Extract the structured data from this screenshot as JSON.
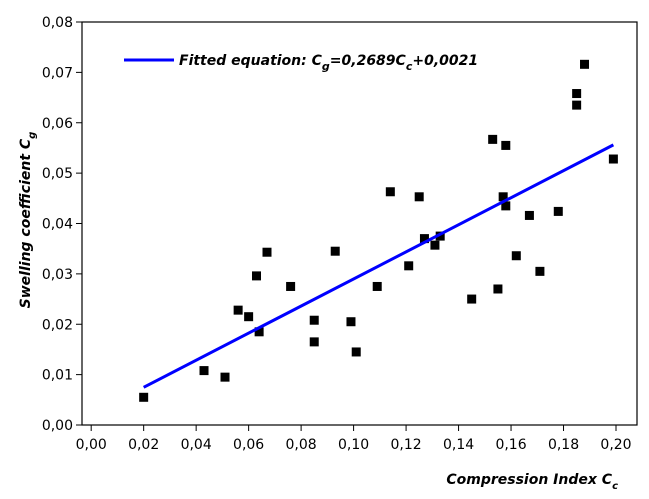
{
  "chart_data": {
    "type": "scatter",
    "xlabel": [
      "Compression Index C",
      "c"
    ],
    "ylabel": [
      "Swelling coefficient C",
      "g"
    ],
    "xlim": [
      -0.0035,
      0.208
    ],
    "ylim": [
      0,
      0.08
    ],
    "xticks": [
      {
        "value": 0,
        "label": "0,00"
      },
      {
        "value": 0.02,
        "label": "0,02"
      },
      {
        "value": 0.04,
        "label": "0,04"
      },
      {
        "value": 0.06,
        "label": "0,06"
      },
      {
        "value": 0.08,
        "label": "0,08"
      },
      {
        "value": 0.1,
        "label": "0,10"
      },
      {
        "value": 0.12,
        "label": "0,12"
      },
      {
        "value": 0.14,
        "label": "0,14"
      },
      {
        "value": 0.16,
        "label": "0,16"
      },
      {
        "value": 0.18,
        "label": "0,18"
      },
      {
        "value": 0.2,
        "label": "0,20"
      }
    ],
    "yticks": [
      {
        "value": 0,
        "label": "0,00"
      },
      {
        "value": 0.01,
        "label": "0,01"
      },
      {
        "value": 0.02,
        "label": "0,02"
      },
      {
        "value": 0.03,
        "label": "0,03"
      },
      {
        "value": 0.04,
        "label": "0,04"
      },
      {
        "value": 0.05,
        "label": "0,05"
      },
      {
        "value": 0.06,
        "label": "0,06"
      },
      {
        "value": 0.07,
        "label": "0,07"
      },
      {
        "value": 0.08,
        "label": "0,08"
      }
    ],
    "legend": "upper left",
    "series": [
      {
        "type": "scatter",
        "color": "#000000",
        "x": [
          0.02,
          0.043,
          0.051,
          0.056,
          0.06,
          0.063,
          0.064,
          0.067,
          0.076,
          0.085,
          0.085,
          0.093,
          0.099,
          0.101,
          0.109,
          0.114,
          0.121,
          0.125,
          0.127,
          0.131,
          0.133,
          0.145,
          0.153,
          0.155,
          0.157,
          0.158,
          0.158,
          0.162,
          0.167,
          0.171,
          0.178,
          0.185,
          0.185,
          0.188,
          0.199
        ],
        "values": [
          0.0055,
          0.0108,
          0.0095,
          0.0228,
          0.0215,
          0.0296,
          0.0185,
          0.0343,
          0.0275,
          0.0208,
          0.0165,
          0.0345,
          0.0205,
          0.0145,
          0.0275,
          0.0463,
          0.0316,
          0.0453,
          0.037,
          0.0357,
          0.0375,
          0.025,
          0.0567,
          0.027,
          0.0453,
          0.0555,
          0.0435,
          0.0336,
          0.0416,
          0.0305,
          0.0424,
          0.0658,
          0.0635,
          0.0716,
          0.0528
        ]
      },
      {
        "type": "line",
        "color": "#0000ff",
        "name": [
          "Fitted equation: C",
          "g",
          "=0,2689C",
          "c",
          "+0,0021"
        ],
        "x": [
          0.02,
          0.199
        ],
        "values": [
          0.007478,
          0.055611
        ]
      }
    ]
  }
}
